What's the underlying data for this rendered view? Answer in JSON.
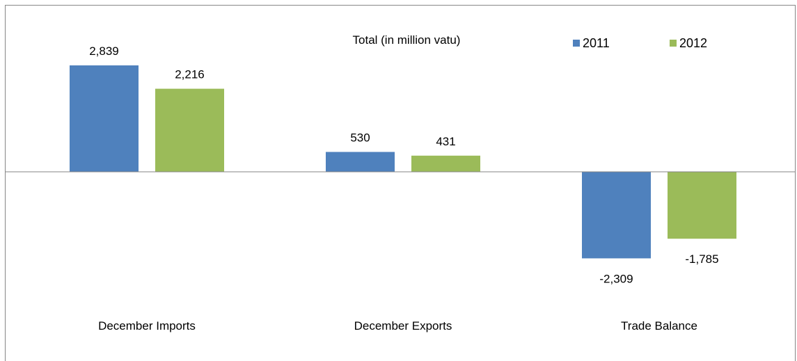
{
  "chart_data": {
    "type": "bar",
    "title": "Total (in million vatu)",
    "categories": [
      "December Imports",
      "December Exports",
      "Trade Balance"
    ],
    "series": [
      {
        "name": "2011",
        "color": "#4F81BD",
        "values": [
          2839,
          530,
          -2309
        ],
        "labels": [
          "2,839",
          "530",
          "-2,309"
        ]
      },
      {
        "name": "2012",
        "color": "#9BBB59",
        "values": [
          2216,
          431,
          -1785
        ],
        "labels": [
          "2,216",
          "431",
          "-1,785"
        ]
      }
    ],
    "ylim": [
      -4500,
      4500
    ],
    "legend": "top-right",
    "grid": false
  }
}
